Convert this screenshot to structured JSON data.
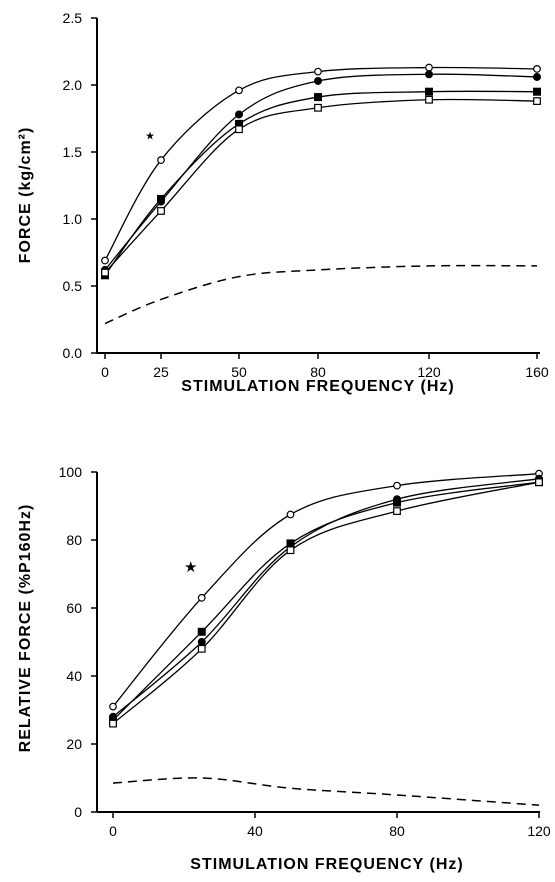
{
  "chart_data": [
    {
      "type": "line",
      "title": "",
      "xlabel": "STIMULATION FREQUENCY (Hz)",
      "ylabel": "FORCE (kg/cm²)",
      "x": [
        0,
        25,
        50,
        80,
        120,
        160
      ],
      "x_tick_labels": [
        "0",
        "25",
        "50",
        "80",
        "120",
        "160"
      ],
      "y_tick_labels": [
        "0.0",
        "0.5",
        "1.0",
        "1.5",
        "2.0",
        "2.5"
      ],
      "ylim": [
        0,
        2.5
      ],
      "series": [
        {
          "marker": "open-circle",
          "line": "solid",
          "values": [
            0.69,
            1.44,
            1.96,
            2.1,
            2.13,
            2.12
          ]
        },
        {
          "marker": "filled-circle",
          "line": "solid",
          "values": [
            0.62,
            1.13,
            1.78,
            2.03,
            2.08,
            2.06
          ]
        },
        {
          "marker": "filled-square",
          "line": "solid",
          "values": [
            0.58,
            1.15,
            1.71,
            1.91,
            1.95,
            1.95
          ]
        },
        {
          "marker": "open-square",
          "line": "solid",
          "values": [
            0.6,
            1.06,
            1.67,
            1.83,
            1.89,
            1.88
          ]
        },
        {
          "marker": "none",
          "line": "dashed",
          "values": [
            0.22,
            0.4,
            0.57,
            0.62,
            0.65,
            0.65
          ]
        }
      ],
      "annotations": [
        {
          "text": "★",
          "x": 25,
          "y": 1.63
        }
      ],
      "grid": false,
      "legend": "none"
    },
    {
      "type": "line",
      "title": "",
      "xlabel": "STIMULATION FREQUENCY (Hz)",
      "ylabel": "RELATIVE FORCE (%P160Hz)",
      "x": [
        0,
        25,
        50,
        80,
        120
      ],
      "x_tick_values": [
        0,
        40,
        80,
        120
      ],
      "x_tick_labels": [
        "0",
        "40",
        "80",
        "120"
      ],
      "y_tick_labels": [
        "0",
        "20",
        "40",
        "60",
        "80",
        "100"
      ],
      "xlim": [
        0,
        120
      ],
      "ylim": [
        0,
        100
      ],
      "series": [
        {
          "marker": "open-circle",
          "line": "solid",
          "values": [
            31,
            63,
            87.5,
            96,
            99.5
          ]
        },
        {
          "marker": "filled-circle",
          "line": "solid",
          "values": [
            28,
            50,
            78,
            92,
            98
          ]
        },
        {
          "marker": "filled-square",
          "line": "solid",
          "values": [
            27,
            53,
            79,
            91,
            97
          ]
        },
        {
          "marker": "open-square",
          "line": "solid",
          "values": [
            26,
            48,
            77,
            88.5,
            97
          ]
        },
        {
          "marker": "none",
          "line": "dashed",
          "values": [
            8.5,
            10,
            7,
            5,
            2
          ]
        }
      ],
      "annotations": [
        {
          "text": "★",
          "x": 25,
          "y": 72
        }
      ],
      "grid": false,
      "legend": "none"
    }
  ]
}
